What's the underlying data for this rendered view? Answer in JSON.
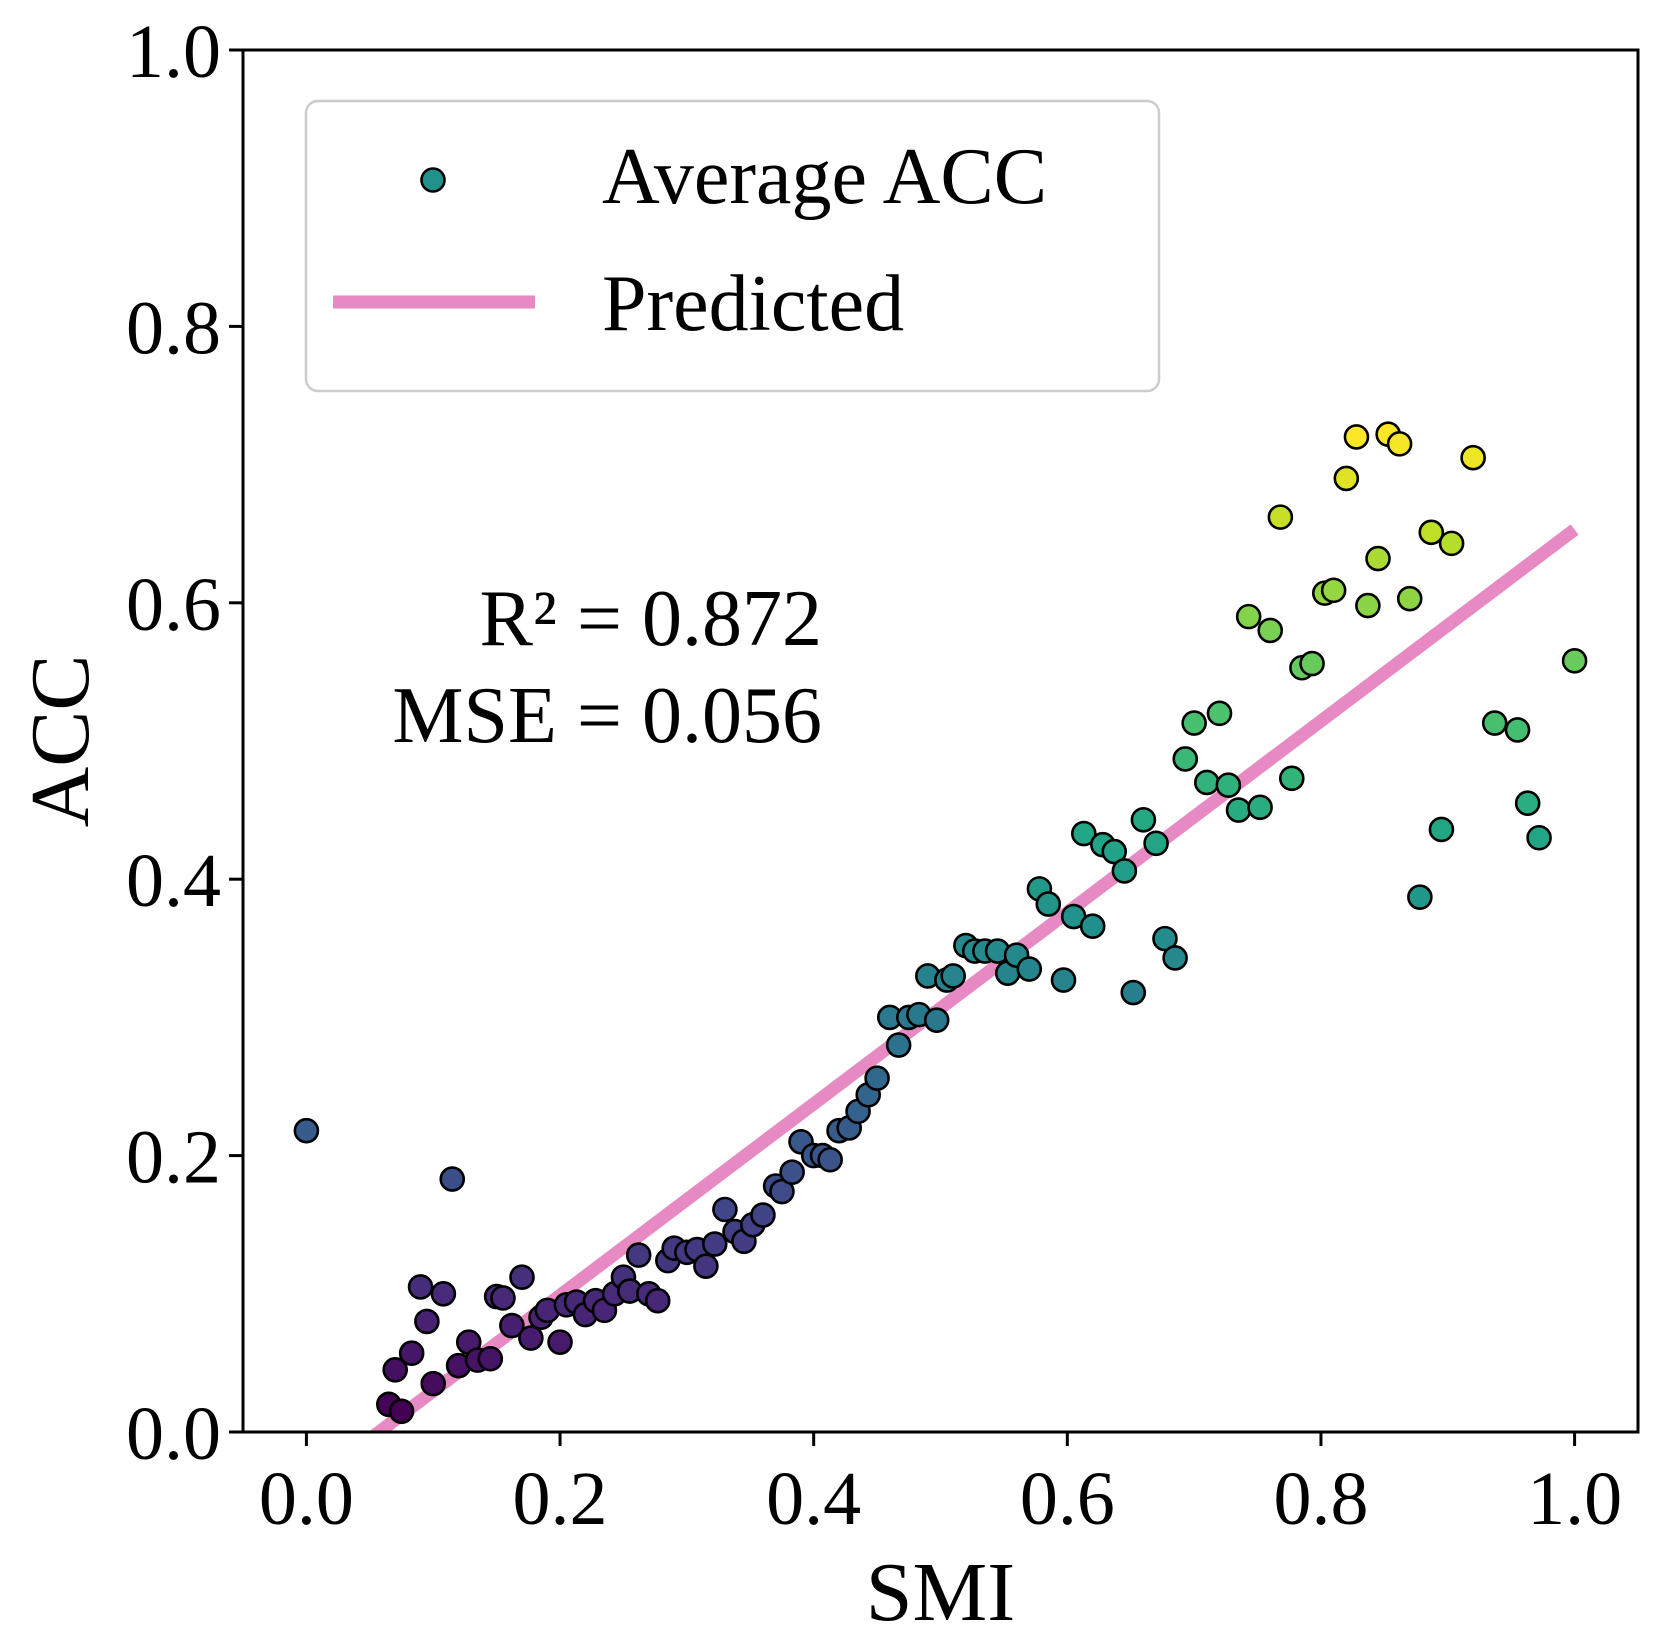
{
  "chart_data": {
    "type": "scatter",
    "xlabel": "SMI",
    "ylabel": "ACC",
    "xlim": [
      -0.05,
      1.05
    ],
    "ylim": [
      0.0,
      1.0
    ],
    "xticks": [
      "0.0",
      "0.2",
      "0.4",
      "0.6",
      "0.8",
      "1.0"
    ],
    "yticks": [
      "0.0",
      "0.2",
      "0.4",
      "0.6",
      "0.8",
      "1.0"
    ],
    "grid": false,
    "legend": {
      "placement": "upper-left",
      "entries": [
        {
          "label": "Average ACC",
          "kind": "marker",
          "color": "#21918c"
        },
        {
          "label": "Predicted",
          "kind": "line",
          "color": "#e78ac3"
        }
      ]
    },
    "annotations": [
      "R² = 0.872",
      "MSE = 0.056"
    ],
    "colormap": "viridis",
    "predicted_line": {
      "x": [
        0.05,
        1.0
      ],
      "y": [
        -0.005,
        0.653
      ],
      "color": "#e78ac3"
    },
    "series": [
      {
        "name": "Average ACC",
        "points": [
          [
            0.0,
            0.218
          ],
          [
            0.115,
            0.183
          ],
          [
            0.065,
            0.02
          ],
          [
            0.07,
            0.045
          ],
          [
            0.075,
            0.015
          ],
          [
            0.083,
            0.057
          ],
          [
            0.09,
            0.105
          ],
          [
            0.095,
            0.08
          ],
          [
            0.1,
            0.035
          ],
          [
            0.108,
            0.1
          ],
          [
            0.12,
            0.048
          ],
          [
            0.128,
            0.065
          ],
          [
            0.135,
            0.052
          ],
          [
            0.145,
            0.053
          ],
          [
            0.15,
            0.098
          ],
          [
            0.155,
            0.097
          ],
          [
            0.162,
            0.077
          ],
          [
            0.17,
            0.112
          ],
          [
            0.177,
            0.068
          ],
          [
            0.185,
            0.083
          ],
          [
            0.19,
            0.088
          ],
          [
            0.2,
            0.065
          ],
          [
            0.205,
            0.092
          ],
          [
            0.213,
            0.094
          ],
          [
            0.22,
            0.085
          ],
          [
            0.228,
            0.095
          ],
          [
            0.235,
            0.088
          ],
          [
            0.243,
            0.1
          ],
          [
            0.25,
            0.112
          ],
          [
            0.255,
            0.102
          ],
          [
            0.262,
            0.128
          ],
          [
            0.27,
            0.1
          ],
          [
            0.277,
            0.095
          ],
          [
            0.285,
            0.124
          ],
          [
            0.29,
            0.133
          ],
          [
            0.3,
            0.13
          ],
          [
            0.308,
            0.132
          ],
          [
            0.315,
            0.12
          ],
          [
            0.322,
            0.136
          ],
          [
            0.33,
            0.161
          ],
          [
            0.338,
            0.145
          ],
          [
            0.345,
            0.138
          ],
          [
            0.352,
            0.15
          ],
          [
            0.36,
            0.157
          ],
          [
            0.37,
            0.178
          ],
          [
            0.375,
            0.174
          ],
          [
            0.383,
            0.188
          ],
          [
            0.39,
            0.21
          ],
          [
            0.4,
            0.2
          ],
          [
            0.407,
            0.2
          ],
          [
            0.413,
            0.197
          ],
          [
            0.42,
            0.218
          ],
          [
            0.428,
            0.22
          ],
          [
            0.435,
            0.232
          ],
          [
            0.443,
            0.244
          ],
          [
            0.45,
            0.256
          ],
          [
            0.46,
            0.3
          ],
          [
            0.467,
            0.28
          ],
          [
            0.475,
            0.3
          ],
          [
            0.483,
            0.302
          ],
          [
            0.49,
            0.33
          ],
          [
            0.497,
            0.298
          ],
          [
            0.505,
            0.327
          ],
          [
            0.51,
            0.33
          ],
          [
            0.52,
            0.352
          ],
          [
            0.527,
            0.348
          ],
          [
            0.535,
            0.348
          ],
          [
            0.545,
            0.348
          ],
          [
            0.553,
            0.332
          ],
          [
            0.56,
            0.345
          ],
          [
            0.57,
            0.335
          ],
          [
            0.578,
            0.393
          ],
          [
            0.585,
            0.382
          ],
          [
            0.597,
            0.327
          ],
          [
            0.605,
            0.373
          ],
          [
            0.613,
            0.433
          ],
          [
            0.62,
            0.366
          ],
          [
            0.628,
            0.425
          ],
          [
            0.637,
            0.42
          ],
          [
            0.645,
            0.406
          ],
          [
            0.652,
            0.318
          ],
          [
            0.66,
            0.443
          ],
          [
            0.67,
            0.426
          ],
          [
            0.677,
            0.357
          ],
          [
            0.685,
            0.343
          ],
          [
            0.693,
            0.487
          ],
          [
            0.7,
            0.513
          ],
          [
            0.71,
            0.47
          ],
          [
            0.72,
            0.52
          ],
          [
            0.727,
            0.468
          ],
          [
            0.735,
            0.45
          ],
          [
            0.743,
            0.59
          ],
          [
            0.752,
            0.452
          ],
          [
            0.76,
            0.58
          ],
          [
            0.768,
            0.662
          ],
          [
            0.777,
            0.473
          ],
          [
            0.785,
            0.553
          ],
          [
            0.793,
            0.556
          ],
          [
            0.803,
            0.607
          ],
          [
            0.81,
            0.609
          ],
          [
            0.82,
            0.69
          ],
          [
            0.828,
            0.72
          ],
          [
            0.837,
            0.598
          ],
          [
            0.845,
            0.632
          ],
          [
            0.853,
            0.722
          ],
          [
            0.862,
            0.715
          ],
          [
            0.87,
            0.603
          ],
          [
            0.878,
            0.387
          ],
          [
            0.887,
            0.651
          ],
          [
            0.895,
            0.436
          ],
          [
            0.903,
            0.643
          ],
          [
            0.92,
            0.705
          ],
          [
            0.937,
            0.513
          ],
          [
            0.955,
            0.508
          ],
          [
            0.963,
            0.455
          ],
          [
            0.972,
            0.43
          ],
          [
            1.0,
            0.558
          ]
        ]
      }
    ]
  }
}
